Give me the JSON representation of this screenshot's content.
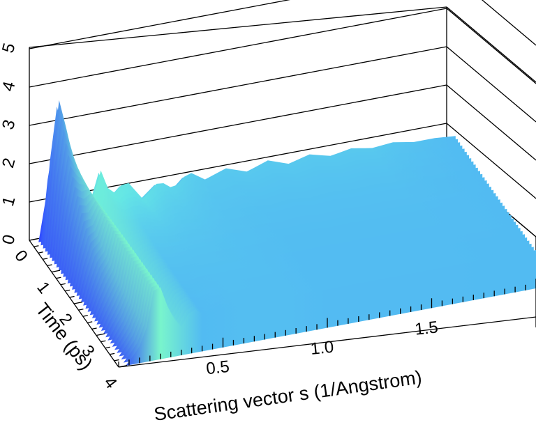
{
  "chart_data": {
    "type": "surface",
    "title": "",
    "xlabel": "Scattering vector s (1/Angstrom)",
    "ylabel": "Time (ps)",
    "zlabel": "",
    "x_ticks": [
      "0.5",
      "1.0",
      "1.5"
    ],
    "y_ticks": [
      "0",
      "1",
      "2",
      "3",
      "4"
    ],
    "z_ticks": [
      "0",
      "1",
      "2",
      "3",
      "4",
      "5"
    ],
    "xlim": [
      0.0,
      2.0
    ],
    "ylim": [
      0,
      4
    ],
    "zlim": [
      0,
      5
    ],
    "colormap": [
      "#2d3cff",
      "#3f8cff",
      "#64e6e6",
      "#7cf7c8",
      "#b6f22a",
      "#ffb020",
      "#ff4a3a",
      "#ff35d2"
    ],
    "grid": true,
    "surface_profile": {
      "s": [
        0.0,
        0.05,
        0.08,
        0.12,
        0.18,
        0.25,
        0.3,
        0.35,
        0.42,
        0.5,
        0.58,
        0.65,
        0.72,
        0.8,
        0.9,
        1.0,
        1.1,
        1.2,
        1.3,
        1.4,
        1.5,
        1.6,
        1.7,
        1.8,
        1.9,
        2.0
      ],
      "peak_z": [
        0.0,
        0.0,
        4.5,
        3.6,
        2.0,
        0.9,
        1.9,
        1.1,
        1.5,
        0.9,
        1.3,
        1.0,
        1.4,
        1.1,
        1.3,
        1.1,
        1.3,
        1.1,
        1.25,
        1.1,
        1.2,
        1.1,
        1.15,
        1.05,
        1.05,
        1.0
      ],
      "final_z": [
        0.0,
        0.0,
        0.2,
        0.4,
        2.2,
        1.1,
        0.7,
        1.2,
        0.9,
        1.05,
        1.0,
        1.05,
        1.0,
        1.02,
        1.0,
        1.0,
        1.0,
        1.0,
        1.0,
        1.0,
        1.0,
        1.0,
        1.0,
        1.0,
        1.0,
        1.0
      ]
    }
  }
}
